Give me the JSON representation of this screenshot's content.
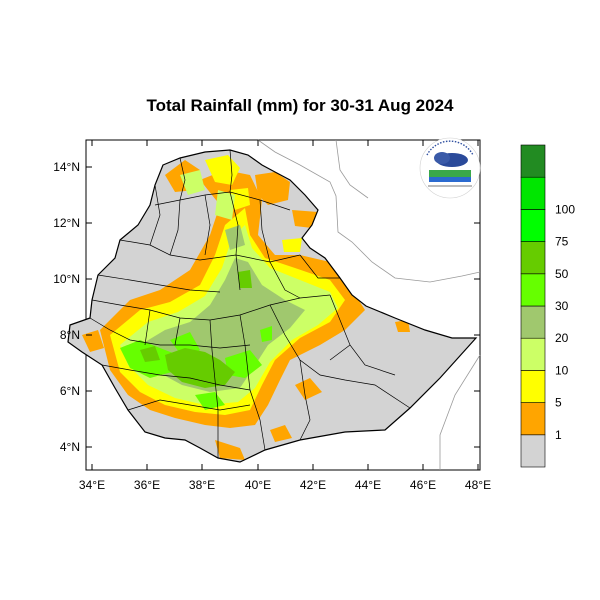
{
  "title": "Total Rainfall (mm) for 30-31 Aug 2024",
  "map": {
    "lat_ticks": [
      "4°N",
      "6°N",
      "8°N",
      "10°N",
      "12°N",
      "14°N"
    ],
    "lon_ticks": [
      "34°E",
      "36°E",
      "38°E",
      "40°E",
      "42°E",
      "44°E",
      "46°E",
      "48°E"
    ],
    "lat_range": [
      3.2,
      15.0
    ],
    "lon_range": [
      33.0,
      48.2
    ]
  },
  "legend": {
    "colors": [
      "#d3d3d3",
      "#ffa500",
      "#ffff00",
      "#ccff66",
      "#a0c86e",
      "#66ff00",
      "#66cc00",
      "#00ff00",
      "#00e600",
      "#228b22"
    ],
    "labels": [
      "1",
      "5",
      "10",
      "20",
      "30",
      "50",
      "75",
      "100"
    ],
    "units": "mm"
  },
  "logo": {
    "name": "ethiopian-meteorology-institute-logo"
  }
}
